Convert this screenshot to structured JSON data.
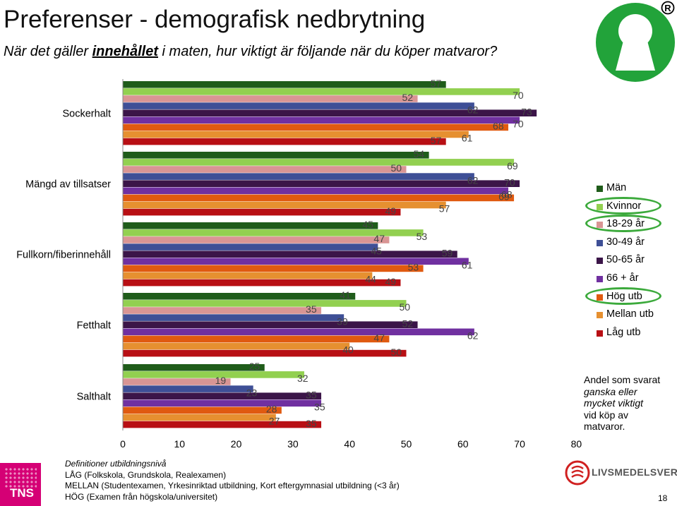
{
  "header": {
    "title": "Preferenser - demografisk nedbrytning",
    "subtitle_prefix": "När det gäller ",
    "subtitle_emphasis": "innehållet",
    "subtitle_suffix": " i maten, hur viktigt är följande när du köper matvaror?"
  },
  "chart_data": {
    "type": "bar",
    "orientation": "horizontal",
    "categories": [
      "Sockerhalt",
      "Mängd av tillsatser",
      "Fullkorn/fiberinnehåll",
      "Fetthalt",
      "Salthalt"
    ],
    "series": [
      {
        "name": "Män",
        "color": "#1f5c1a",
        "values": [
          57,
          54,
          45,
          41,
          25
        ]
      },
      {
        "name": "Kvinnor",
        "color": "#92d050",
        "values": [
          70,
          69,
          53,
          50,
          32
        ]
      },
      {
        "name": "18-29 år",
        "color": "#d99594",
        "values": [
          52,
          50,
          47,
          35,
          19
        ]
      },
      {
        "name": "30-49 år",
        "color": "#3e4f96",
        "values": [
          62,
          62,
          45,
          39,
          23
        ]
      },
      {
        "name": "50-65 år",
        "color": "#3b1548",
        "values": [
          73,
          70,
          59,
          52,
          35
        ]
      },
      {
        "name": "66 + år",
        "color": "#7030a0",
        "values": [
          70,
          68,
          61,
          62,
          35
        ]
      },
      {
        "name": "Hög utb",
        "color": "#e05a10",
        "values": [
          68,
          69,
          53,
          47,
          28
        ]
      },
      {
        "name": "Mellan utb",
        "color": "#e69030",
        "values": [
          61,
          57,
          44,
          40,
          27
        ]
      },
      {
        "name": "Låg utb",
        "color": "#b80f14",
        "values": [
          57,
          49,
          49,
          50,
          35
        ]
      }
    ],
    "xlim": [
      0,
      80
    ],
    "xticks": [
      0,
      10,
      20,
      30,
      40,
      50,
      60,
      70,
      80
    ],
    "grid": false,
    "legend_position": "right",
    "highlighted_legend_entries": [
      "Kvinnor",
      "18-29 år",
      "Hög utb"
    ],
    "highlight_color": "#3caa3c"
  },
  "note": {
    "line1": "Andel som svarat",
    "line2": "ganska eller",
    "line3": "mycket viktigt",
    "line4": "vid köp av",
    "line5": "matvaror."
  },
  "footer": {
    "heading": "Definitioner utbildningsnivå",
    "low": "LÅG (Folkskola, Grundskola, Realexamen)",
    "mid": "MELLAN (Studentexamen, Yrkesinriktad utbildning, Kort eftergymnasial utbildning (<3 år)",
    "high": "HÖG (Examen från högskola/universitet)"
  },
  "logos": {
    "tns": "TNS",
    "livsmedelsverket": "LIVSMEDELSVERKET",
    "registered_mark": "R",
    "tns_color": "#d50075",
    "brand_green": "#22a33a"
  },
  "page_number": "18"
}
